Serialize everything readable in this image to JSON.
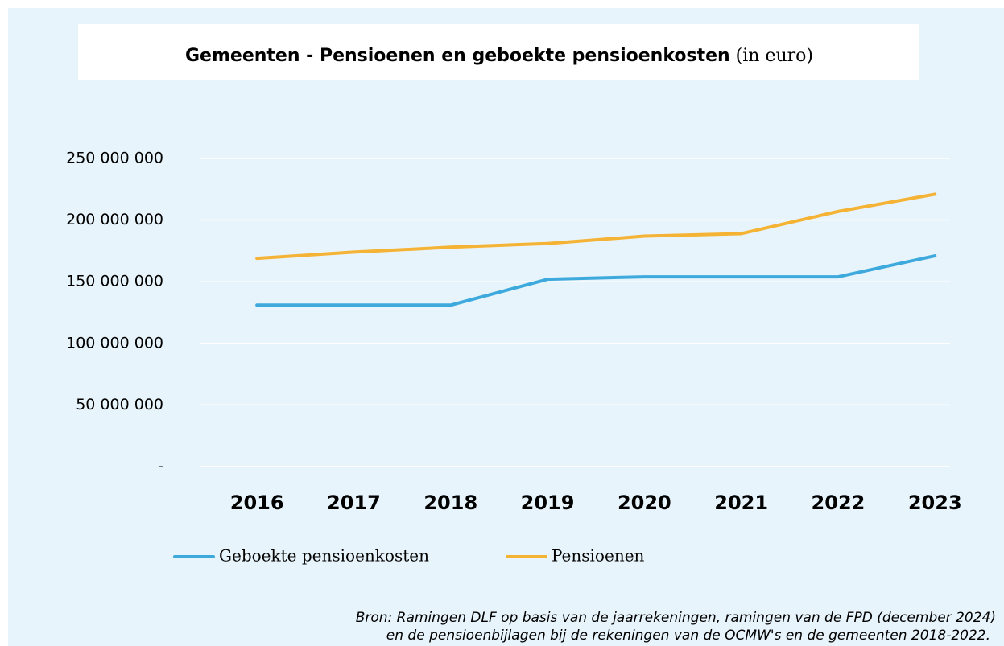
{
  "chart_data": {
    "type": "line",
    "title": "Gemeenten - Pensioenen en geboekte pensioenkosten",
    "title_note": "(in euro)",
    "categories": [
      "2016",
      "2017",
      "2018",
      "2019",
      "2020",
      "2021",
      "2022",
      "2023"
    ],
    "series": [
      {
        "name": "Geboekte pensioenkosten",
        "color": "#3ea9dc",
        "values": [
          131000000,
          131000000,
          131000000,
          152000000,
          154000000,
          154000000,
          154000000,
          171000000
        ]
      },
      {
        "name": "Pensioenen",
        "color": "#f5b335",
        "values": [
          169000000,
          174000000,
          178000000,
          181000000,
          187000000,
          189000000,
          207000000,
          221000000
        ]
      }
    ],
    "ylim": [
      0,
      250000000
    ],
    "yticks": [
      {
        "value": 0,
        "label": "-"
      },
      {
        "value": 50000000,
        "label": "50 000 000"
      },
      {
        "value": 100000000,
        "label": "100 000 000"
      },
      {
        "value": 150000000,
        "label": "150 000 000"
      },
      {
        "value": 200000000,
        "label": "200 000 000"
      },
      {
        "value": 250000000,
        "label": "250 000 000"
      }
    ],
    "grid": true,
    "legend": "bottom",
    "source": [
      "Bron: Ramingen DLF op basis van de jaarrekeningen, ramingen van de FPD (december 2024)",
      "en de pensioenbijlagen bij de rekeningen van de OCMW's en de gemeenten 2018-2022."
    ]
  }
}
